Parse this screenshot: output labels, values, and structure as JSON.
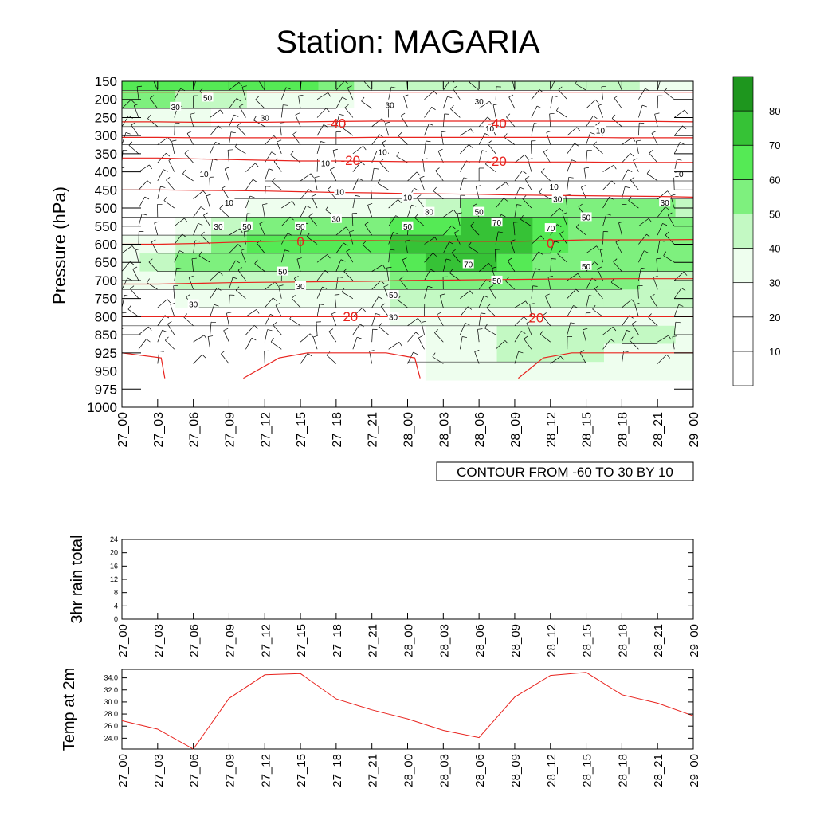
{
  "title": "Station: MAGARIA",
  "colors": {
    "temp_contour": "#e8231e",
    "line": "#000000",
    "shade_levels": [
      "#ffffff",
      "#ffffff",
      "#ffffff",
      "#eefeee",
      "#c3f9c3",
      "#7ef07e",
      "#55ea55",
      "#36c236",
      "#1e961e"
    ]
  },
  "chart_data": [
    {
      "type": "heatmap",
      "subtype": "time-pressure cross section (filled RH contours, temperature contours, wind barbs)",
      "ylabel": "Pressure (hPa)",
      "xlabel": "",
      "x_ticks": [
        "27_00",
        "27_03",
        "27_06",
        "27_09",
        "27_12",
        "27_15",
        "27_18",
        "27_21",
        "28_00",
        "28_03",
        "28_06",
        "28_09",
        "28_12",
        "28_15",
        "28_18",
        "28_21",
        "29_00"
      ],
      "y_ticks": [
        150,
        200,
        250,
        300,
        350,
        400,
        450,
        500,
        550,
        600,
        650,
        700,
        750,
        800,
        850,
        925,
        950,
        975,
        1000
      ],
      "ylim": [
        1000,
        150
      ],
      "info_label": "CONTOUR FROM -60 TO 30 BY 10",
      "colorbar": {
        "levels": [
          10,
          20,
          30,
          40,
          50,
          60,
          70,
          80
        ],
        "labels": [
          "10",
          "20",
          "30",
          "40",
          "50",
          "60",
          "70",
          "80"
        ]
      },
      "rh_row_levels": [
        150,
        200,
        250,
        300,
        350,
        400,
        450,
        500,
        550,
        600,
        650,
        700,
        750,
        800,
        850,
        925,
        950
      ],
      "rh_values": [
        [
          65,
          65,
          65,
          62,
          62,
          60,
          55,
          45,
          40,
          40,
          40,
          40,
          40,
          40,
          40,
          35,
          35
        ],
        [
          52,
          50,
          45,
          40,
          35,
          35,
          30,
          25,
          25,
          25,
          25,
          25,
          25,
          25,
          25,
          25,
          25
        ],
        [
          35,
          32,
          30,
          28,
          28,
          25,
          22,
          20,
          20,
          20,
          20,
          25,
          25,
          25,
          22,
          22,
          22
        ],
        [
          20,
          18,
          15,
          12,
          12,
          12,
          10,
          10,
          10,
          10,
          10,
          12,
          12,
          12,
          12,
          10,
          10
        ],
        [
          10,
          10,
          8,
          8,
          8,
          8,
          10,
          10,
          10,
          10,
          10,
          10,
          10,
          10,
          10,
          8,
          8
        ],
        [
          10,
          10,
          10,
          10,
          8,
          8,
          10,
          12,
          10,
          10,
          10,
          10,
          10,
          10,
          10,
          10,
          10
        ],
        [
          10,
          12,
          12,
          12,
          12,
          12,
          12,
          12,
          12,
          12,
          12,
          12,
          15,
          15,
          15,
          20,
          22
        ],
        [
          15,
          15,
          18,
          20,
          30,
          32,
          32,
          32,
          38,
          45,
          50,
          50,
          50,
          50,
          50,
          50,
          45
        ],
        [
          22,
          25,
          35,
          45,
          58,
          55,
          52,
          55,
          62,
          68,
          72,
          72,
          66,
          58,
          52,
          55,
          55
        ],
        [
          30,
          35,
          45,
          55,
          62,
          62,
          60,
          62,
          72,
          76,
          76,
          70,
          65,
          55,
          55,
          55,
          55
        ],
        [
          35,
          45,
          55,
          58,
          58,
          55,
          52,
          55,
          65,
          70,
          70,
          62,
          55,
          52,
          52,
          52,
          52
        ],
        [
          30,
          35,
          40,
          40,
          40,
          40,
          40,
          42,
          50,
          55,
          55,
          52,
          52,
          50,
          50,
          45,
          45
        ],
        [
          25,
          25,
          30,
          30,
          30,
          30,
          32,
          35,
          42,
          42,
          40,
          40,
          40,
          40,
          40,
          40,
          40
        ],
        [
          20,
          20,
          22,
          22,
          25,
          25,
          25,
          25,
          30,
          35,
          35,
          38,
          38,
          38,
          38,
          38,
          38
        ],
        [
          18,
          18,
          18,
          18,
          18,
          18,
          18,
          18,
          22,
          32,
          38,
          40,
          42,
          45,
          45,
          42,
          38
        ],
        [
          15,
          15,
          15,
          15,
          15,
          15,
          15,
          15,
          20,
          32,
          38,
          40,
          40,
          40,
          38,
          35,
          35
        ],
        [
          10,
          10,
          10,
          10,
          10,
          10,
          10,
          10,
          15,
          32,
          38,
          38,
          38,
          38,
          35,
          35,
          35
        ]
      ],
      "rh_contour_labels": [
        {
          "text": "50",
          "p": 195,
          "t": 2.4
        },
        {
          "text": "30",
          "p": 220,
          "t": 1.5
        },
        {
          "text": "30",
          "p": 250,
          "t": 4.0
        },
        {
          "text": "30",
          "p": 215,
          "t": 7.5
        },
        {
          "text": "30",
          "p": 205,
          "t": 10.0
        },
        {
          "text": "10",
          "p": 280,
          "t": 10.3
        },
        {
          "text": "10",
          "p": 285,
          "t": 13.4
        },
        {
          "text": "10",
          "p": 345,
          "t": 7.3
        },
        {
          "text": "10",
          "p": 375,
          "t": 5.7
        },
        {
          "text": "10",
          "p": 405,
          "t": 2.3
        },
        {
          "text": "10",
          "p": 440,
          "t": 12.1
        },
        {
          "text": "10",
          "p": 405,
          "t": 15.6
        },
        {
          "text": "10",
          "p": 455,
          "t": 6.1
        },
        {
          "text": "10",
          "p": 470,
          "t": 8.0
        },
        {
          "text": "10",
          "p": 485,
          "t": 3.0
        },
        {
          "text": "30",
          "p": 475,
          "t": 12.2
        },
        {
          "text": "30",
          "p": 485,
          "t": 15.2
        },
        {
          "text": "30",
          "p": 510,
          "t": 8.6
        },
        {
          "text": "30",
          "p": 530,
          "t": 6.0
        },
        {
          "text": "30",
          "p": 550,
          "t": 2.7
        },
        {
          "text": "50",
          "p": 550,
          "t": 3.5
        },
        {
          "text": "50",
          "p": 550,
          "t": 5.0
        },
        {
          "text": "50",
          "p": 550,
          "t": 8.0
        },
        {
          "text": "50",
          "p": 510,
          "t": 10.0
        },
        {
          "text": "50",
          "p": 525,
          "t": 13.0
        },
        {
          "text": "70",
          "p": 540,
          "t": 10.5
        },
        {
          "text": "70",
          "p": 555,
          "t": 12.0
        },
        {
          "text": "70",
          "p": 655,
          "t": 9.7
        },
        {
          "text": "50",
          "p": 660,
          "t": 13.0
        },
        {
          "text": "50",
          "p": 675,
          "t": 4.5
        },
        {
          "text": "50",
          "p": 700,
          "t": 10.5
        },
        {
          "text": "30",
          "p": 715,
          "t": 5.0
        },
        {
          "text": "50",
          "p": 740,
          "t": 7.6
        },
        {
          "text": "30",
          "p": 765,
          "t": 2.0
        },
        {
          "text": "30",
          "p": 800,
          "t": 7.6
        }
      ],
      "temperature_contours": [
        {
          "level": -50,
          "p": [
            180,
            180,
            180,
            180,
            180,
            180,
            180,
            180,
            180,
            180,
            180,
            180,
            180,
            180,
            180,
            180,
            180
          ]
        },
        {
          "level": -40,
          "p": [
            262,
            262,
            263,
            263,
            263,
            262,
            261,
            260,
            260,
            260,
            260,
            260,
            260,
            260,
            261,
            261,
            262
          ]
        },
        {
          "level": -30,
          "p": [
            305,
            305,
            306,
            306,
            306,
            306,
            306,
            305,
            305,
            305,
            305,
            305,
            305,
            305,
            306,
            306,
            306
          ]
        },
        {
          "level": -20,
          "p": [
            362,
            362,
            364,
            366,
            368,
            370,
            370,
            371,
            372,
            372,
            372,
            373,
            373,
            373,
            374,
            374,
            374
          ]
        },
        {
          "level": -10,
          "p": [
            450,
            450,
            451,
            452,
            453,
            455,
            457,
            458,
            460,
            461,
            462,
            464,
            465,
            466,
            467,
            468,
            470
          ]
        },
        {
          "level": 0,
          "p": [
            600,
            600,
            598,
            595,
            592,
            590,
            590,
            590,
            591,
            592,
            592,
            592,
            590,
            588,
            588,
            588,
            587
          ]
        },
        {
          "level": 10,
          "p": [
            710,
            710,
            708,
            706,
            705,
            704,
            703,
            702,
            700,
            699,
            698,
            697,
            696,
            696,
            695,
            695,
            695
          ]
        },
        {
          "level": 20,
          "p": [
            800,
            800,
            800,
            800,
            800,
            800,
            800,
            800,
            800,
            800,
            800,
            800,
            800,
            800,
            800,
            800,
            800
          ]
        }
      ],
      "temperature_contour_labels": [
        {
          "text": "-40",
          "p": 265,
          "t": 6.0
        },
        {
          "text": "-40",
          "p": 265,
          "t": 10.5
        },
        {
          "text": "-20",
          "p": 368,
          "t": 6.4
        },
        {
          "text": "-20",
          "p": 370,
          "t": 10.5
        },
        {
          "text": "0",
          "p": 592,
          "t": 5.0
        },
        {
          "text": "0",
          "p": 597,
          "t": 12.0
        },
        {
          "text": "20",
          "p": 799,
          "t": 6.4
        },
        {
          "text": "20",
          "p": 802,
          "t": 11.6
        }
      ],
      "surface_temperature_contours": [
        {
          "level": 30,
          "t": [
            0.0,
            1.1,
            1.2
          ],
          "p": [
            925,
            932,
            960
          ]
        },
        {
          "level": 30,
          "t": [
            3.4,
            4.4,
            5.2,
            7.4,
            8.2,
            8.35
          ],
          "p": [
            960,
            932,
            925,
            925,
            932,
            960
          ]
        },
        {
          "level": 30,
          "t": [
            11.1,
            11.8,
            12.6,
            14.0,
            16.0
          ],
          "p": [
            960,
            932,
            925,
            925,
            925
          ]
        }
      ]
    },
    {
      "type": "line",
      "title": "",
      "ylabel": "3hr rain total",
      "xlabel": "",
      "ylim": [
        0,
        24
      ],
      "y_ticks": [
        0,
        4,
        8,
        12,
        16,
        20,
        24
      ],
      "categories": [
        "27_00",
        "27_03",
        "27_06",
        "27_09",
        "27_12",
        "27_15",
        "27_18",
        "27_21",
        "28_00",
        "28_03",
        "28_06",
        "28_09",
        "28_12",
        "28_15",
        "28_18",
        "28_21",
        "29_00"
      ],
      "values": [
        0,
        0,
        0,
        0,
        0,
        0,
        0,
        0,
        0,
        0,
        0,
        0,
        0,
        0,
        0,
        0,
        0
      ]
    },
    {
      "type": "line",
      "title": "",
      "ylabel": "Temp at 2m",
      "xlabel": "",
      "ylim": [
        22.2,
        35.4
      ],
      "y_ticks": [
        "24.0",
        "26.0",
        "28.0",
        "30.0",
        "32.0",
        "34.0"
      ],
      "categories": [
        "27_00",
        "27_03",
        "27_06",
        "27_09",
        "27_12",
        "27_15",
        "27_18",
        "27_21",
        "28_00",
        "28_03",
        "28_06",
        "28_09",
        "28_12",
        "28_15",
        "28_18",
        "28_21",
        "29_00"
      ],
      "values": [
        26.9,
        25.5,
        22.2,
        30.6,
        34.5,
        34.7,
        30.5,
        28.7,
        27.2,
        25.3,
        24.1,
        30.8,
        34.4,
        34.9,
        31.2,
        29.8,
        27.7
      ]
    }
  ]
}
